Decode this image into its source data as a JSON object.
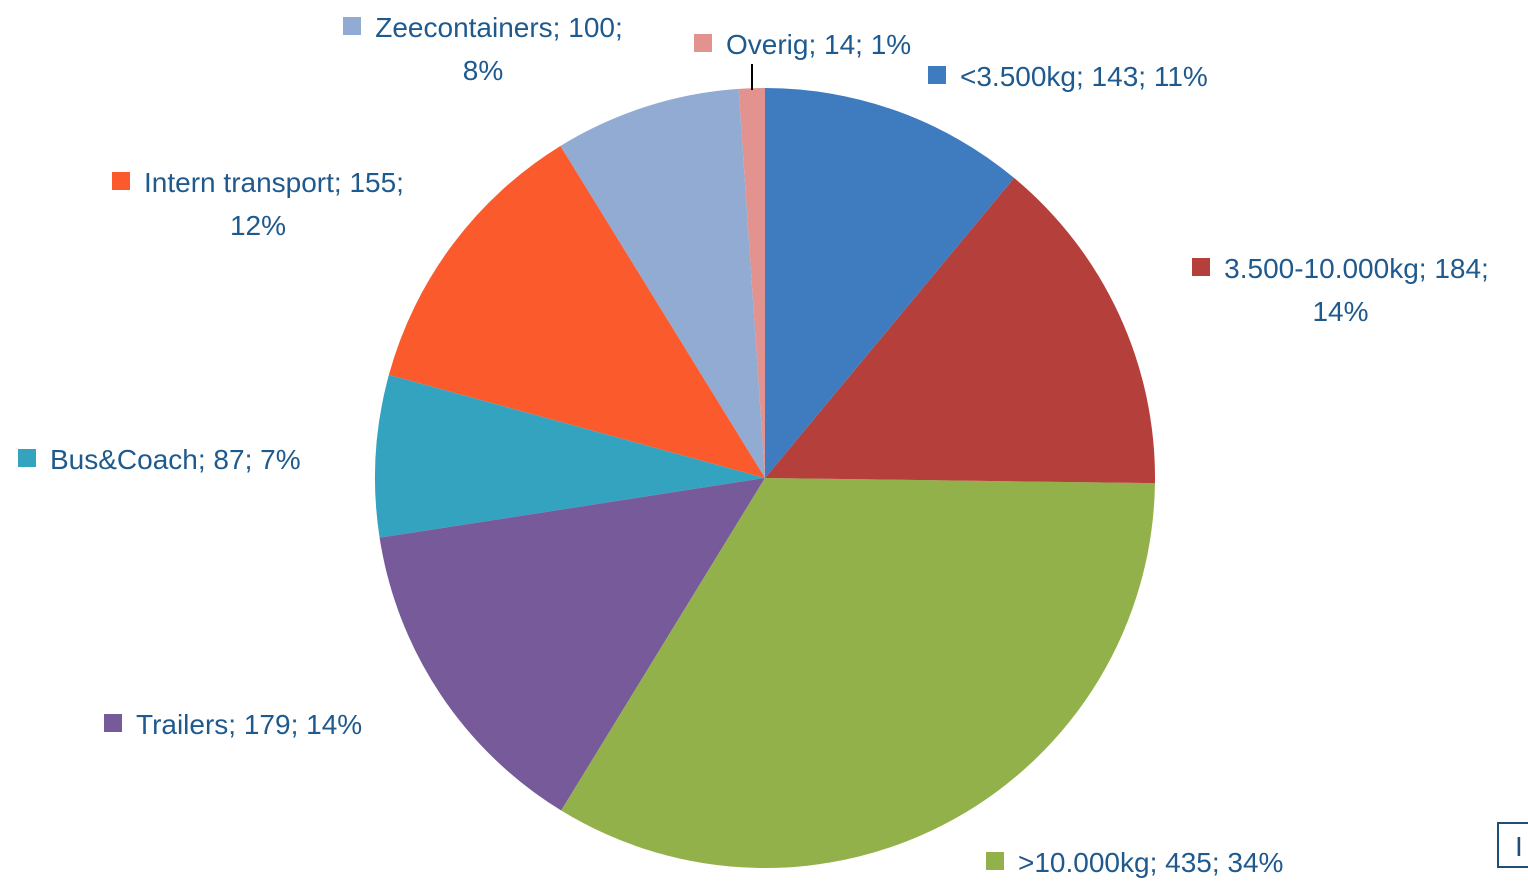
{
  "chart_data": {
    "type": "pie",
    "values": [
      143,
      184,
      435,
      179,
      87,
      155,
      100,
      14
    ],
    "value_labels": [
      "<3.500kg; 143; 11%",
      "3.500-10.000kg; 184;\n14%",
      ">10.000kg; 435; 34%",
      "Trailers; 179; 14%",
      "Bus&Coach; 87; 7%",
      "Intern transport; 155;\n12%",
      "Zeecontainers; 100;\n8%",
      "Overig; 14; 1%"
    ],
    "colors": [
      "#3e7cbf",
      "#b5403b",
      "#93b14a",
      "#775a99",
      "#33a3bf",
      "#fb5a2c",
      "#91abd3",
      "#e2938f"
    ],
    "start_angle": 0,
    "direction": "clockwise",
    "fragment": "I"
  }
}
